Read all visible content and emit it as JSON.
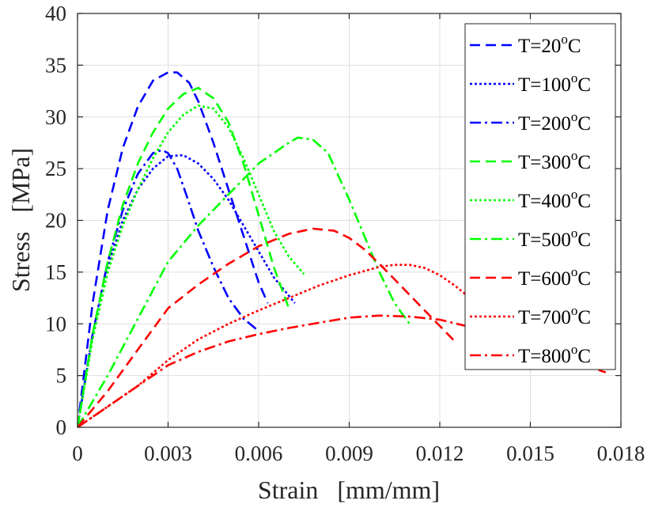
{
  "chart_data": {
    "type": "line",
    "title": "",
    "xlabel": "Strain   [mm/mm]",
    "ylabel": "Stress   [MPa]",
    "xlim": [
      0,
      0.018
    ],
    "ylim": [
      0,
      40
    ],
    "xticks": [
      0,
      0.003,
      0.006,
      0.009,
      0.012,
      0.015,
      0.018
    ],
    "xtick_labels": [
      "0",
      "0.003",
      "0.006",
      "0.009",
      "0.012",
      "0.015",
      "0.018"
    ],
    "yticks": [
      0,
      5,
      10,
      15,
      20,
      25,
      30,
      35,
      40
    ],
    "ytick_labels": [
      "0",
      "5",
      "10",
      "15",
      "20",
      "25",
      "30",
      "35",
      "40"
    ],
    "grid": true,
    "legend_position": "top-right",
    "series": [
      {
        "name_prefix": "T=20",
        "name_sup": "o",
        "name_suffix": "C",
        "color": "#0000ff",
        "dash": "dashed",
        "x": [
          0,
          0.0005,
          0.001,
          0.0015,
          0.002,
          0.0025,
          0.003,
          0.0033,
          0.0037,
          0.004,
          0.0045,
          0.005,
          0.0055,
          0.006,
          0.0063
        ],
        "y": [
          0,
          12,
          21,
          27,
          31,
          33.5,
          34.3,
          34.3,
          33.3,
          31.5,
          27.5,
          23,
          18.5,
          14,
          12
        ]
      },
      {
        "name_prefix": "T=100",
        "name_sup": "o",
        "name_suffix": "C",
        "color": "#0000ff",
        "dash": "dotted",
        "x": [
          0,
          0.0005,
          0.001,
          0.0015,
          0.002,
          0.0025,
          0.003,
          0.0035,
          0.004,
          0.0045,
          0.005,
          0.0055,
          0.006,
          0.0065,
          0.0072
        ],
        "y": [
          0,
          9,
          15.5,
          20,
          23,
          25,
          26.2,
          26.3,
          25.5,
          24,
          22,
          19.5,
          17,
          14.5,
          12
        ]
      },
      {
        "name_prefix": "T=200",
        "name_sup": "o",
        "name_suffix": "C",
        "color": "#0000ff",
        "dash": "dashdot",
        "x": [
          0,
          0.0005,
          0.001,
          0.0015,
          0.002,
          0.0025,
          0.0028,
          0.003,
          0.0033,
          0.0036,
          0.004,
          0.0045,
          0.005,
          0.0055,
          0.006
        ],
        "y": [
          0,
          9,
          16,
          21,
          24.5,
          26.5,
          26.8,
          26.5,
          25,
          22.5,
          19,
          15.5,
          12.5,
          10.5,
          9.3
        ]
      },
      {
        "name_prefix": "T=300",
        "name_sup": "o",
        "name_suffix": "C",
        "color": "#00ff00",
        "dash": "dashed",
        "x": [
          0,
          0.0005,
          0.001,
          0.0015,
          0.002,
          0.0025,
          0.003,
          0.0035,
          0.004,
          0.0045,
          0.005,
          0.0055,
          0.006,
          0.0065,
          0.007
        ],
        "y": [
          0,
          9,
          16,
          21.5,
          25.5,
          28.5,
          30.8,
          32.2,
          32.8,
          31.8,
          29.5,
          25.5,
          20.5,
          15.5,
          11.5
        ]
      },
      {
        "name_prefix": "T=400",
        "name_sup": "o",
        "name_suffix": "C",
        "color": "#00ff00",
        "dash": "dotted",
        "x": [
          0,
          0.0005,
          0.001,
          0.0015,
          0.002,
          0.0025,
          0.003,
          0.0035,
          0.004,
          0.0045,
          0.005,
          0.0055,
          0.006,
          0.0065,
          0.007,
          0.0075
        ],
        "y": [
          0,
          8.5,
          15,
          19.5,
          23,
          26,
          28.5,
          30.2,
          31.1,
          30.8,
          29,
          26,
          22.5,
          19,
          16.5,
          14.8
        ]
      },
      {
        "name_prefix": "T=500",
        "name_sup": "o",
        "name_suffix": "C",
        "color": "#00ff00",
        "dash": "dashdot",
        "x": [
          0,
          0.001,
          0.002,
          0.003,
          0.004,
          0.005,
          0.006,
          0.007,
          0.0073,
          0.0078,
          0.0083,
          0.009,
          0.0095,
          0.01,
          0.0105,
          0.011
        ],
        "y": [
          0,
          5,
          10.5,
          16,
          19.5,
          22.5,
          25.5,
          27.5,
          28,
          27.8,
          26.5,
          22,
          18.5,
          15,
          12,
          10
        ]
      },
      {
        "name_prefix": "T=600",
        "name_sup": "o",
        "name_suffix": "C",
        "color": "#ff0000",
        "dash": "dashed",
        "x": [
          0,
          0.001,
          0.002,
          0.003,
          0.004,
          0.005,
          0.006,
          0.007,
          0.0078,
          0.0085,
          0.009,
          0.0095,
          0.01,
          0.0105,
          0.011,
          0.0115,
          0.012,
          0.0125
        ],
        "y": [
          0,
          3.5,
          7.5,
          11.5,
          13.8,
          15.8,
          17.5,
          18.7,
          19.2,
          19,
          18.3,
          17.2,
          15.8,
          14.3,
          12.8,
          11.3,
          9.8,
          8.3
        ]
      },
      {
        "name_prefix": "T=700",
        "name_sup": "o",
        "name_suffix": "C",
        "color": "#ff0000",
        "dash": "dotted",
        "x": [
          0,
          0.002,
          0.003,
          0.004,
          0.005,
          0.006,
          0.007,
          0.008,
          0.009,
          0.01,
          0.0105,
          0.011,
          0.0115,
          0.012,
          0.0125,
          0.013,
          0.0135
        ],
        "y": [
          0,
          4,
          6.5,
          8.5,
          10,
          11.3,
          12.5,
          13.7,
          14.7,
          15.5,
          15.7,
          15.7,
          15.4,
          14.7,
          13.7,
          12.5,
          11
        ]
      },
      {
        "name_prefix": "T=800",
        "name_sup": "o",
        "name_suffix": "C",
        "color": "#ff0000",
        "dash": "dashdot",
        "x": [
          0,
          0.001,
          0.002,
          0.003,
          0.004,
          0.005,
          0.006,
          0.007,
          0.008,
          0.009,
          0.01,
          0.011,
          0.012,
          0.013,
          0.014,
          0.015,
          0.016,
          0.017,
          0.0175
        ],
        "y": [
          0,
          2,
          4,
          6,
          7.3,
          8.3,
          9,
          9.6,
          10.1,
          10.6,
          10.8,
          10.7,
          10.4,
          9.7,
          8.8,
          7.8,
          6.8,
          5.8,
          5.3
        ]
      }
    ]
  }
}
